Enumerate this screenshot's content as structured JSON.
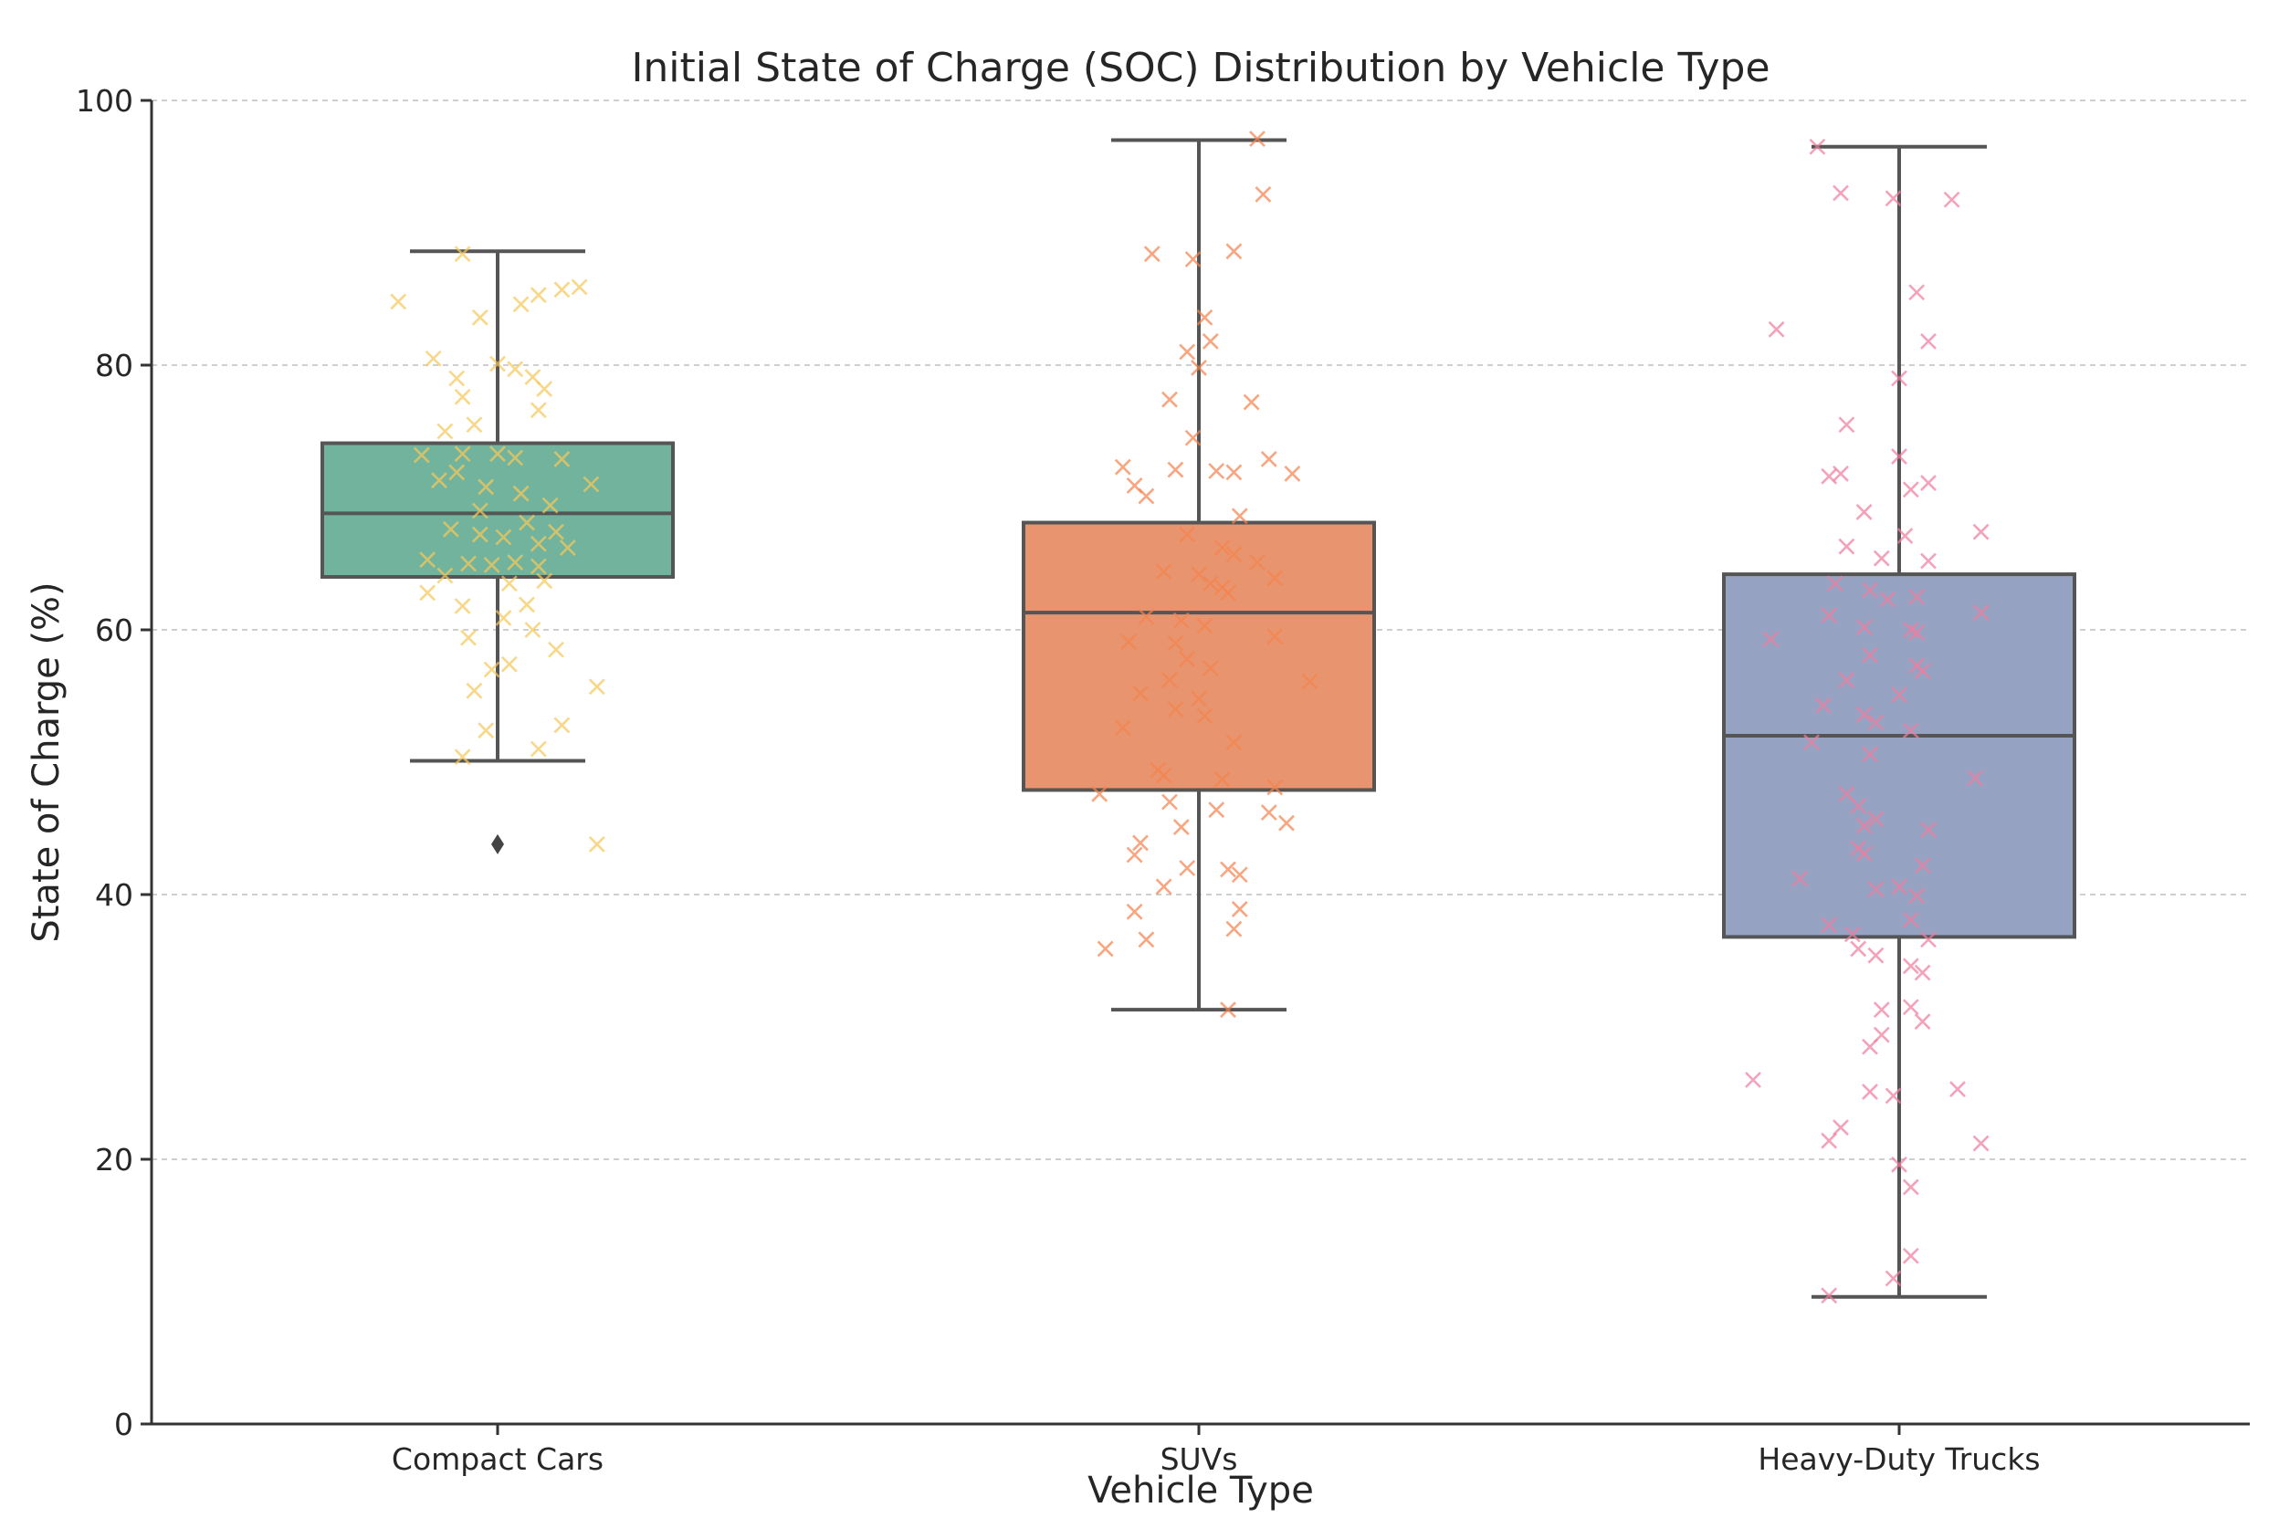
{
  "chart_data": {
    "type": "box",
    "title": "Initial State of Charge (SOC) Distribution by Vehicle Type",
    "xlabel": "Vehicle Type",
    "ylabel": "State of Charge (%)",
    "ylim": [
      0,
      100
    ],
    "yticks": [
      0,
      20,
      40,
      60,
      80,
      100
    ],
    "ytick_labels": [
      "0",
      "20",
      "40",
      "60",
      "80",
      "100"
    ],
    "grid": "y-dashed",
    "categories": [
      "Compact Cars",
      "SUVs",
      "Heavy-Duty Trucks"
    ],
    "series": [
      {
        "name": "Compact Cars",
        "box_color": "#72b39d",
        "point_color": "#f5c85a",
        "whisker_low": 50.1,
        "q1": 64.0,
        "median": 68.8,
        "q3": 74.1,
        "whisker_high": 88.6,
        "outliers": [
          43.8
        ],
        "points": [
          {
            "x": -0.17,
            "y": 84.8
          },
          {
            "x": -0.06,
            "y": 88.4
          },
          {
            "x": -0.03,
            "y": 83.6
          },
          {
            "x": 0.04,
            "y": 84.6
          },
          {
            "x": 0.07,
            "y": 85.3
          },
          {
            "x": 0.11,
            "y": 85.7
          },
          {
            "x": 0.14,
            "y": 85.9
          },
          {
            "x": -0.11,
            "y": 80.5
          },
          {
            "x": -0.07,
            "y": 79.0
          },
          {
            "x": -0.06,
            "y": 77.6
          },
          {
            "x": 0.0,
            "y": 80.1
          },
          {
            "x": 0.03,
            "y": 79.7
          },
          {
            "x": 0.06,
            "y": 79.1
          },
          {
            "x": 0.08,
            "y": 78.2
          },
          {
            "x": 0.07,
            "y": 76.6
          },
          {
            "x": -0.09,
            "y": 75.0
          },
          {
            "x": -0.04,
            "y": 75.5
          },
          {
            "x": -0.13,
            "y": 73.2
          },
          {
            "x": -0.06,
            "y": 73.3
          },
          {
            "x": 0.0,
            "y": 73.3
          },
          {
            "x": 0.03,
            "y": 73.0
          },
          {
            "x": 0.11,
            "y": 72.9
          },
          {
            "x": 0.16,
            "y": 71.0
          },
          {
            "x": -0.1,
            "y": 71.3
          },
          {
            "x": -0.07,
            "y": 71.9
          },
          {
            "x": -0.02,
            "y": 70.8
          },
          {
            "x": 0.04,
            "y": 70.3
          },
          {
            "x": 0.09,
            "y": 69.4
          },
          {
            "x": -0.03,
            "y": 69.0
          },
          {
            "x": 0.05,
            "y": 68.1
          },
          {
            "x": 0.1,
            "y": 67.4
          },
          {
            "x": -0.08,
            "y": 67.6
          },
          {
            "x": -0.03,
            "y": 67.2
          },
          {
            "x": 0.01,
            "y": 67.0
          },
          {
            "x": 0.07,
            "y": 66.5
          },
          {
            "x": 0.12,
            "y": 66.2
          },
          {
            "x": -0.12,
            "y": 65.3
          },
          {
            "x": -0.05,
            "y": 65.0
          },
          {
            "x": -0.01,
            "y": 64.9
          },
          {
            "x": 0.03,
            "y": 65.1
          },
          {
            "x": 0.07,
            "y": 64.8
          },
          {
            "x": -0.09,
            "y": 64.1
          },
          {
            "x": 0.02,
            "y": 63.5
          },
          {
            "x": 0.08,
            "y": 63.7
          },
          {
            "x": -0.12,
            "y": 62.8
          },
          {
            "x": -0.06,
            "y": 61.8
          },
          {
            "x": 0.05,
            "y": 61.9
          },
          {
            "x": -0.05,
            "y": 59.4
          },
          {
            "x": 0.01,
            "y": 60.9
          },
          {
            "x": 0.06,
            "y": 60.0
          },
          {
            "x": 0.1,
            "y": 58.5
          },
          {
            "x": 0.02,
            "y": 57.4
          },
          {
            "x": -0.01,
            "y": 57.0
          },
          {
            "x": 0.17,
            "y": 55.7
          },
          {
            "x": -0.04,
            "y": 55.4
          },
          {
            "x": -0.02,
            "y": 52.4
          },
          {
            "x": 0.11,
            "y": 52.8
          },
          {
            "x": 0.07,
            "y": 51.0
          },
          {
            "x": -0.06,
            "y": 50.4
          },
          {
            "x": 0.17,
            "y": 43.8
          }
        ]
      },
      {
        "name": "SUVs",
        "box_color": "#e8956f",
        "point_color": "#f4834f",
        "whisker_low": 31.3,
        "q1": 47.9,
        "median": 61.3,
        "q3": 68.1,
        "whisker_high": 97.0,
        "outliers": [],
        "points": [
          {
            "x": 0.1,
            "y": 97.1
          },
          {
            "x": 0.11,
            "y": 92.9
          },
          {
            "x": -0.08,
            "y": 88.4
          },
          {
            "x": -0.01,
            "y": 88.0
          },
          {
            "x": 0.06,
            "y": 88.6
          },
          {
            "x": 0.01,
            "y": 83.6
          },
          {
            "x": 0.02,
            "y": 81.8
          },
          {
            "x": -0.02,
            "y": 81.0
          },
          {
            "x": 0.0,
            "y": 79.8
          },
          {
            "x": -0.05,
            "y": 77.4
          },
          {
            "x": 0.09,
            "y": 77.2
          },
          {
            "x": -0.01,
            "y": 74.5
          },
          {
            "x": 0.12,
            "y": 72.9
          },
          {
            "x": -0.13,
            "y": 72.3
          },
          {
            "x": -0.04,
            "y": 72.1
          },
          {
            "x": 0.03,
            "y": 72.0
          },
          {
            "x": 0.06,
            "y": 71.9
          },
          {
            "x": 0.16,
            "y": 71.8
          },
          {
            "x": -0.11,
            "y": 70.9
          },
          {
            "x": -0.09,
            "y": 70.1
          },
          {
            "x": 0.07,
            "y": 68.6
          },
          {
            "x": -0.02,
            "y": 67.2
          },
          {
            "x": 0.04,
            "y": 66.2
          },
          {
            "x": 0.06,
            "y": 65.7
          },
          {
            "x": 0.1,
            "y": 65.1
          },
          {
            "x": -0.06,
            "y": 64.4
          },
          {
            "x": 0.0,
            "y": 64.2
          },
          {
            "x": 0.13,
            "y": 63.9
          },
          {
            "x": 0.02,
            "y": 63.5
          },
          {
            "x": 0.04,
            "y": 63.2
          },
          {
            "x": 0.05,
            "y": 62.8
          },
          {
            "x": -0.09,
            "y": 61.0
          },
          {
            "x": -0.03,
            "y": 60.7
          },
          {
            "x": 0.01,
            "y": 60.3
          },
          {
            "x": -0.12,
            "y": 59.1
          },
          {
            "x": -0.04,
            "y": 59.0
          },
          {
            "x": 0.13,
            "y": 59.5
          },
          {
            "x": -0.02,
            "y": 57.8
          },
          {
            "x": 0.02,
            "y": 57.1
          },
          {
            "x": -0.05,
            "y": 56.2
          },
          {
            "x": 0.19,
            "y": 56.1
          },
          {
            "x": -0.1,
            "y": 55.2
          },
          {
            "x": -0.04,
            "y": 54.0
          },
          {
            "x": 0.0,
            "y": 54.8
          },
          {
            "x": 0.01,
            "y": 53.5
          },
          {
            "x": -0.13,
            "y": 52.6
          },
          {
            "x": 0.06,
            "y": 51.5
          },
          {
            "x": -0.07,
            "y": 49.4
          },
          {
            "x": -0.06,
            "y": 49.0
          },
          {
            "x": 0.04,
            "y": 48.7
          },
          {
            "x": -0.17,
            "y": 47.6
          },
          {
            "x": 0.13,
            "y": 48.1
          },
          {
            "x": -0.05,
            "y": 47.0
          },
          {
            "x": 0.03,
            "y": 46.4
          },
          {
            "x": 0.12,
            "y": 46.2
          },
          {
            "x": 0.15,
            "y": 45.4
          },
          {
            "x": -0.03,
            "y": 45.1
          },
          {
            "x": -0.1,
            "y": 43.9
          },
          {
            "x": -0.11,
            "y": 43.0
          },
          {
            "x": -0.02,
            "y": 42.0
          },
          {
            "x": 0.05,
            "y": 41.9
          },
          {
            "x": 0.07,
            "y": 41.5
          },
          {
            "x": -0.06,
            "y": 40.6
          },
          {
            "x": -0.11,
            "y": 38.7
          },
          {
            "x": 0.07,
            "y": 38.9
          },
          {
            "x": 0.06,
            "y": 37.4
          },
          {
            "x": -0.09,
            "y": 36.6
          },
          {
            "x": -0.16,
            "y": 35.9
          },
          {
            "x": 0.05,
            "y": 31.3
          }
        ]
      },
      {
        "name": "Heavy-Duty Trucks",
        "box_color": "#95a2c2",
        "point_color": "#f07ea0",
        "whisker_low": 9.6,
        "q1": 36.8,
        "median": 52.0,
        "q3": 64.2,
        "whisker_high": 96.5,
        "outliers": [],
        "points": [
          {
            "x": -0.14,
            "y": 96.5
          },
          {
            "x": -0.1,
            "y": 93.0
          },
          {
            "x": -0.01,
            "y": 92.6
          },
          {
            "x": 0.09,
            "y": 92.5
          },
          {
            "x": 0.03,
            "y": 85.5
          },
          {
            "x": -0.21,
            "y": 82.7
          },
          {
            "x": 0.05,
            "y": 81.8
          },
          {
            "x": 0.0,
            "y": 79.0
          },
          {
            "x": -0.09,
            "y": 75.5
          },
          {
            "x": 0.0,
            "y": 73.1
          },
          {
            "x": -0.1,
            "y": 71.8
          },
          {
            "x": -0.12,
            "y": 71.6
          },
          {
            "x": 0.05,
            "y": 71.1
          },
          {
            "x": 0.02,
            "y": 70.6
          },
          {
            "x": -0.06,
            "y": 68.9
          },
          {
            "x": 0.01,
            "y": 67.1
          },
          {
            "x": 0.14,
            "y": 67.4
          },
          {
            "x": -0.09,
            "y": 66.3
          },
          {
            "x": -0.03,
            "y": 65.4
          },
          {
            "x": 0.05,
            "y": 65.2
          },
          {
            "x": -0.11,
            "y": 63.5
          },
          {
            "x": -0.05,
            "y": 63.0
          },
          {
            "x": -0.02,
            "y": 62.3
          },
          {
            "x": 0.03,
            "y": 62.5
          },
          {
            "x": -0.12,
            "y": 61.1
          },
          {
            "x": 0.14,
            "y": 61.3
          },
          {
            "x": -0.06,
            "y": 60.2
          },
          {
            "x": 0.02,
            "y": 60.0
          },
          {
            "x": -0.22,
            "y": 59.3
          },
          {
            "x": 0.03,
            "y": 59.8
          },
          {
            "x": -0.05,
            "y": 58.1
          },
          {
            "x": 0.03,
            "y": 57.3
          },
          {
            "x": 0.04,
            "y": 56.9
          },
          {
            "x": -0.09,
            "y": 56.2
          },
          {
            "x": 0.0,
            "y": 55.1
          },
          {
            "x": -0.13,
            "y": 54.3
          },
          {
            "x": -0.06,
            "y": 53.6
          },
          {
            "x": -0.04,
            "y": 53.0
          },
          {
            "x": 0.02,
            "y": 52.4
          },
          {
            "x": -0.15,
            "y": 51.5
          },
          {
            "x": -0.05,
            "y": 50.6
          },
          {
            "x": 0.13,
            "y": 48.8
          },
          {
            "x": -0.09,
            "y": 47.6
          },
          {
            "x": -0.07,
            "y": 46.7
          },
          {
            "x": -0.04,
            "y": 45.7
          },
          {
            "x": -0.06,
            "y": 45.2
          },
          {
            "x": 0.05,
            "y": 44.9
          },
          {
            "x": -0.07,
            "y": 43.5
          },
          {
            "x": -0.06,
            "y": 43.1
          },
          {
            "x": 0.04,
            "y": 42.2
          },
          {
            "x": -0.17,
            "y": 41.2
          },
          {
            "x": -0.04,
            "y": 40.4
          },
          {
            "x": 0.0,
            "y": 40.6
          },
          {
            "x": 0.03,
            "y": 39.9
          },
          {
            "x": 0.02,
            "y": 38.1
          },
          {
            "x": -0.12,
            "y": 37.7
          },
          {
            "x": -0.08,
            "y": 37.0
          },
          {
            "x": 0.05,
            "y": 36.6
          },
          {
            "x": -0.07,
            "y": 35.9
          },
          {
            "x": -0.04,
            "y": 35.4
          },
          {
            "x": 0.02,
            "y": 34.6
          },
          {
            "x": 0.04,
            "y": 34.1
          },
          {
            "x": -0.03,
            "y": 31.3
          },
          {
            "x": 0.02,
            "y": 31.5
          },
          {
            "x": 0.04,
            "y": 30.4
          },
          {
            "x": -0.03,
            "y": 29.4
          },
          {
            "x": -0.05,
            "y": 28.5
          },
          {
            "x": -0.25,
            "y": 26.0
          },
          {
            "x": 0.1,
            "y": 25.3
          },
          {
            "x": -0.05,
            "y": 25.1
          },
          {
            "x": -0.01,
            "y": 24.8
          },
          {
            "x": -0.1,
            "y": 22.4
          },
          {
            "x": -0.12,
            "y": 21.4
          },
          {
            "x": 0.14,
            "y": 21.2
          },
          {
            "x": 0.0,
            "y": 19.6
          },
          {
            "x": 0.02,
            "y": 17.9
          },
          {
            "x": 0.02,
            "y": 12.7
          },
          {
            "x": -0.01,
            "y": 11.0
          },
          {
            "x": -0.12,
            "y": 9.7
          }
        ]
      }
    ]
  }
}
